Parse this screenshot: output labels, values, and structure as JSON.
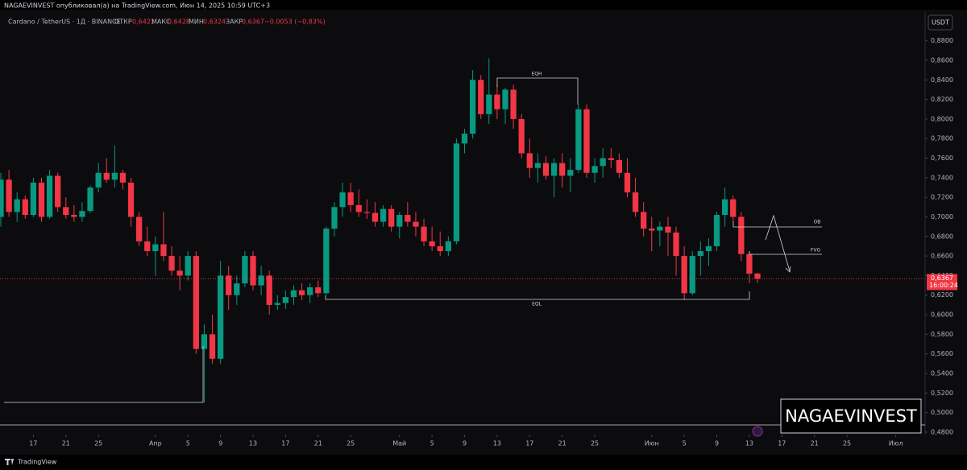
{
  "header": {
    "published": "NAGAEVINVEST опубликовал(а) на TradingView.com, Июн 14, 2025 10:59 UTC+3",
    "symbol": "Cardano / TetherUS · 1Д · BINANCE",
    "open_label": "ОТКР",
    "open": "0,6421",
    "high_label": "МАКС",
    "high": "0,6428",
    "low_label": "МИН",
    "low": "0,6324",
    "close_label": "ЗАКР",
    "close": "0,6367",
    "change": "−0,0053 (−0,83%)"
  },
  "currency": "USDT",
  "watermark": "NAGAEVINVEST",
  "footer": "TradingView",
  "annotations": {
    "eqh": "EQH",
    "eql": "EQL",
    "ob": "OB",
    "fvg": "FVG"
  },
  "chart_data": {
    "type": "candlestick",
    "up_color": "#089981",
    "down_color": "#f23645",
    "x": [
      0,
      1,
      2,
      3,
      4,
      5,
      6,
      7,
      8,
      9,
      10,
      11,
      12,
      13,
      14,
      15,
      16,
      17,
      18,
      19,
      20,
      21,
      22,
      23,
      24,
      25,
      26,
      27,
      28,
      29,
      30,
      31,
      32,
      33,
      34,
      35,
      36,
      37,
      38,
      39,
      40,
      41,
      42,
      43,
      44,
      45,
      46,
      47,
      48,
      49,
      50,
      51,
      52,
      53,
      54,
      55,
      56,
      57,
      58,
      59,
      60,
      61,
      62,
      63,
      64,
      65,
      66,
      67,
      68,
      69,
      70,
      71,
      72,
      73,
      74,
      75,
      76,
      77,
      78,
      79,
      80,
      81,
      82,
      83,
      84,
      85,
      86,
      87,
      88,
      89,
      90,
      91,
      92,
      93
    ],
    "open": [
      0.7,
      0.738,
      0.705,
      0.718,
      0.702,
      0.735,
      0.7,
      0.742,
      0.71,
      0.702,
      0.7,
      0.706,
      0.73,
      0.745,
      0.738,
      0.745,
      0.735,
      0.7,
      0.675,
      0.665,
      0.672,
      0.66,
      0.645,
      0.64,
      0.66,
      0.565,
      0.58,
      0.555,
      0.64,
      0.62,
      0.632,
      0.66,
      0.63,
      0.64,
      0.61,
      0.612,
      0.618,
      0.625,
      0.62,
      0.628,
      0.622,
      0.688,
      0.71,
      0.725,
      0.712,
      0.705,
      0.704,
      0.695,
      0.708,
      0.69,
      0.702,
      0.695,
      0.69,
      0.675,
      0.67,
      0.665,
      0.675,
      0.775,
      0.785,
      0.84,
      0.805,
      0.825,
      0.81,
      0.83,
      0.8,
      0.765,
      0.75,
      0.755,
      0.742,
      0.755,
      0.742,
      0.748,
      0.81,
      0.745,
      0.752,
      0.76,
      0.758,
      0.745,
      0.725,
      0.705,
      0.688,
      0.686,
      0.69,
      0.684,
      0.66,
      0.622,
      0.66,
      0.665,
      0.67,
      0.702,
      0.718,
      0.7,
      0.662,
      0.6421
    ],
    "high": [
      0.745,
      0.748,
      0.725,
      0.722,
      0.74,
      0.74,
      0.748,
      0.745,
      0.72,
      0.712,
      0.715,
      0.732,
      0.755,
      0.76,
      0.773,
      0.748,
      0.74,
      0.705,
      0.69,
      0.68,
      0.705,
      0.67,
      0.66,
      0.665,
      0.665,
      0.59,
      0.6,
      0.655,
      0.65,
      0.64,
      0.665,
      0.665,
      0.65,
      0.645,
      0.62,
      0.625,
      0.63,
      0.632,
      0.632,
      0.635,
      0.69,
      0.715,
      0.735,
      0.735,
      0.728,
      0.718,
      0.715,
      0.712,
      0.712,
      0.705,
      0.715,
      0.705,
      0.698,
      0.69,
      0.685,
      0.68,
      0.78,
      0.79,
      0.85,
      0.845,
      0.862,
      0.835,
      0.832,
      0.835,
      0.805,
      0.78,
      0.765,
      0.762,
      0.76,
      0.765,
      0.76,
      0.815,
      0.815,
      0.76,
      0.77,
      0.77,
      0.765,
      0.76,
      0.74,
      0.715,
      0.7,
      0.695,
      0.7,
      0.69,
      0.67,
      0.665,
      0.675,
      0.678,
      0.705,
      0.73,
      0.722,
      0.705,
      0.665,
      0.6428
    ],
    "low": [
      0.69,
      0.7,
      0.695,
      0.698,
      0.7,
      0.695,
      0.698,
      0.705,
      0.698,
      0.695,
      0.695,
      0.704,
      0.725,
      0.735,
      0.73,
      0.728,
      0.69,
      0.67,
      0.66,
      0.64,
      0.655,
      0.64,
      0.625,
      0.635,
      0.56,
      0.51,
      0.55,
      0.55,
      0.605,
      0.61,
      0.628,
      0.625,
      0.62,
      0.6,
      0.605,
      0.606,
      0.61,
      0.615,
      0.612,
      0.618,
      0.62,
      0.68,
      0.7,
      0.705,
      0.7,
      0.698,
      0.69,
      0.69,
      0.685,
      0.678,
      0.69,
      0.68,
      0.67,
      0.665,
      0.66,
      0.66,
      0.672,
      0.765,
      0.78,
      0.8,
      0.795,
      0.8,
      0.795,
      0.79,
      0.76,
      0.74,
      0.735,
      0.738,
      0.72,
      0.73,
      0.725,
      0.745,
      0.74,
      0.735,
      0.74,
      0.75,
      0.74,
      0.72,
      0.7,
      0.68,
      0.665,
      0.67,
      0.66,
      0.64,
      0.615,
      0.62,
      0.64,
      0.65,
      0.665,
      0.69,
      0.695,
      0.655,
      0.632,
      0.6324
    ],
    "close": [
      0.738,
      0.705,
      0.718,
      0.702,
      0.735,
      0.7,
      0.742,
      0.71,
      0.702,
      0.7,
      0.706,
      0.73,
      0.745,
      0.738,
      0.745,
      0.735,
      0.7,
      0.675,
      0.665,
      0.672,
      0.66,
      0.645,
      0.64,
      0.66,
      0.565,
      0.58,
      0.555,
      0.64,
      0.62,
      0.632,
      0.66,
      0.63,
      0.64,
      0.61,
      0.612,
      0.618,
      0.625,
      0.62,
      0.628,
      0.622,
      0.688,
      0.71,
      0.725,
      0.712,
      0.705,
      0.704,
      0.695,
      0.708,
      0.69,
      0.702,
      0.695,
      0.69,
      0.675,
      0.67,
      0.665,
      0.675,
      0.775,
      0.785,
      0.84,
      0.805,
      0.825,
      0.81,
      0.83,
      0.8,
      0.765,
      0.75,
      0.755,
      0.742,
      0.755,
      0.742,
      0.748,
      0.81,
      0.745,
      0.752,
      0.76,
      0.758,
      0.745,
      0.725,
      0.705,
      0.688,
      0.686,
      0.69,
      0.684,
      0.66,
      0.622,
      0.66,
      0.665,
      0.67,
      0.702,
      0.718,
      0.7,
      0.662,
      0.642,
      0.6367
    ],
    "xlim": [
      -0.1,
      113.6
    ],
    "xticks": [
      {
        "value": 4,
        "label": "17"
      },
      {
        "value": 8,
        "label": "21"
      },
      {
        "value": 12,
        "label": "25"
      },
      {
        "value": 19,
        "label": "Апр"
      },
      {
        "value": 23,
        "label": "5"
      },
      {
        "value": 27,
        "label": "9"
      },
      {
        "value": 31,
        "label": "13"
      },
      {
        "value": 35,
        "label": "17"
      },
      {
        "value": 39,
        "label": "21"
      },
      {
        "value": 43,
        "label": "25"
      },
      {
        "value": 49,
        "label": "Май"
      },
      {
        "value": 53,
        "label": "5"
      },
      {
        "value": 57,
        "label": "9"
      },
      {
        "value": 61,
        "label": "13"
      },
      {
        "value": 65,
        "label": "17"
      },
      {
        "value": 69,
        "label": "21"
      },
      {
        "value": 73,
        "label": "25"
      },
      {
        "value": 80,
        "label": "Июн"
      },
      {
        "value": 84,
        "label": "5"
      },
      {
        "value": 88,
        "label": "9"
      },
      {
        "value": 92,
        "label": "13"
      },
      {
        "value": 96,
        "label": "17"
      },
      {
        "value": 100,
        "label": "21"
      },
      {
        "value": 104,
        "label": "25"
      },
      {
        "value": 110,
        "label": "Июл"
      }
    ],
    "ylim": [
      0.4775,
      0.9052
    ],
    "yticks": [
      {
        "value": 0.48,
        "label": "0,4800"
      },
      {
        "value": 0.5,
        "label": "0,5000"
      },
      {
        "value": 0.52,
        "label": "0,5200"
      },
      {
        "value": 0.54,
        "label": "0,5400"
      },
      {
        "value": 0.56,
        "label": "0,5600"
      },
      {
        "value": 0.58,
        "label": "0,5800"
      },
      {
        "value": 0.6,
        "label": "0,6000"
      },
      {
        "value": 0.62,
        "label": "0,6200"
      },
      {
        "value": 0.64,
        "label": "0,6400"
      },
      {
        "value": 0.66,
        "label": "0,6600"
      },
      {
        "value": 0.68,
        "label": "0,6800"
      },
      {
        "value": 0.7,
        "label": "0,7000"
      },
      {
        "value": 0.72,
        "label": "0,7200"
      },
      {
        "value": 0.74,
        "label": "0,7400"
      },
      {
        "value": 0.76,
        "label": "0,7600"
      },
      {
        "value": 0.78,
        "label": "0,7800"
      },
      {
        "value": 0.8,
        "label": "0,8000"
      },
      {
        "value": 0.82,
        "label": "0,8200"
      },
      {
        "value": 0.84,
        "label": "0,8400"
      },
      {
        "value": 0.86,
        "label": "0,8600"
      },
      {
        "value": 0.88,
        "label": "0,8800"
      }
    ],
    "last_price": {
      "value": 0.6367,
      "label": "0,6367"
    },
    "countdown": "16:00:24"
  }
}
